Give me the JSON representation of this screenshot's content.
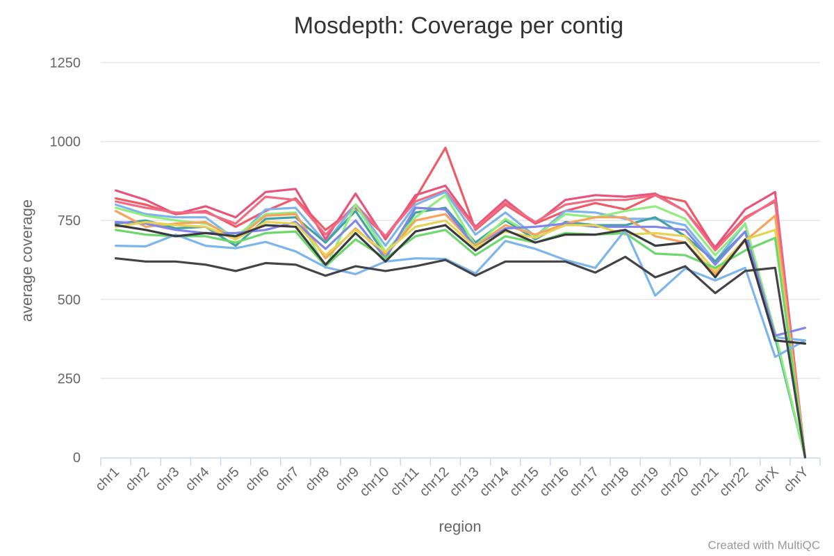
{
  "chart_data": {
    "type": "line",
    "title": "Mosdepth: Coverage per contig",
    "xlabel": "region",
    "ylabel": "average coverage",
    "credit": "Created with MultiQC",
    "ylim": [
      0,
      1250
    ],
    "yticks": [
      0,
      250,
      500,
      750,
      1000,
      1250
    ],
    "grid": true,
    "legend": "none",
    "categories": [
      "chr1",
      "chr2",
      "chr3",
      "chr4",
      "chr5",
      "chr6",
      "chr7",
      "chr8",
      "chr9",
      "chr10",
      "chr11",
      "chr12",
      "chr13",
      "chr14",
      "chr15",
      "chr16",
      "chr17",
      "chr18",
      "chr19",
      "chr20",
      "chr21",
      "chr22",
      "chrX",
      "chrY"
    ],
    "series": [
      {
        "color": "#ef5a67",
        "values": [
          820,
          800,
          770,
          780,
          730,
          780,
          820,
          720,
          790,
          700,
          820,
          980,
          720,
          800,
          740,
          780,
          805,
          785,
          830,
          810,
          660,
          760,
          810,
          0
        ]
      },
      {
        "color": "#e8537a",
        "values": [
          845,
          815,
          770,
          795,
          760,
          840,
          850,
          690,
          835,
          690,
          830,
          860,
          730,
          815,
          740,
          815,
          830,
          825,
          835,
          780,
          665,
          785,
          840,
          0
        ]
      },
      {
        "color": "#f06c85",
        "values": [
          810,
          790,
          775,
          775,
          740,
          825,
          815,
          705,
          800,
          700,
          810,
          845,
          725,
          805,
          745,
          800,
          815,
          815,
          830,
          780,
          655,
          755,
          815,
          0
        ]
      },
      {
        "color": "#7cb5ec",
        "values": [
          800,
          770,
          760,
          760,
          690,
          785,
          790,
          680,
          800,
          670,
          800,
          840,
          705,
          775,
          700,
          780,
          775,
          755,
          755,
          735,
          620,
          740,
          380,
          370
        ]
      },
      {
        "color": "#43a2a0",
        "values": [
          740,
          750,
          725,
          730,
          670,
          755,
          760,
          680,
          780,
          640,
          775,
          790,
          680,
          750,
          690,
          745,
          735,
          735,
          760,
          700,
          620,
          715,
          380,
          0
        ]
      },
      {
        "color": "#90ed7d",
        "values": [
          790,
          765,
          750,
          740,
          700,
          770,
          775,
          600,
          800,
          650,
          760,
          830,
          670,
          755,
          700,
          770,
          760,
          780,
          795,
          755,
          640,
          740,
          395,
          0
        ]
      },
      {
        "color": "#f7a35c",
        "values": [
          780,
          730,
          740,
          745,
          690,
          765,
          770,
          630,
          725,
          640,
          750,
          770,
          670,
          735,
          705,
          740,
          760,
          760,
          700,
          680,
          580,
          685,
          765,
          0
        ]
      },
      {
        "color": "#8085e9",
        "values": [
          745,
          740,
          720,
          710,
          710,
          720,
          745,
          660,
          750,
          630,
          790,
          785,
          665,
          725,
          730,
          740,
          730,
          730,
          730,
          720,
          610,
          715,
          385,
          410
        ]
      },
      {
        "color": "#e4d354",
        "values": [
          730,
          745,
          735,
          730,
          690,
          745,
          740,
          640,
          720,
          650,
          730,
          750,
          665,
          715,
          695,
          735,
          735,
          705,
          710,
          700,
          590,
          690,
          720,
          0
        ]
      },
      {
        "color": "#6cd86c",
        "values": [
          720,
          705,
          700,
          700,
          680,
          710,
          715,
          605,
          690,
          630,
          700,
          720,
          640,
          700,
          680,
          710,
          705,
          710,
          645,
          640,
          600,
          655,
          695,
          0
        ]
      },
      {
        "color": "#7cb5ec",
        "values": [
          670,
          668,
          705,
          670,
          662,
          682,
          652,
          602,
          580,
          620,
          630,
          628,
          582,
          685,
          660,
          625,
          600,
          720,
          512,
          598,
          560,
          600,
          318,
          370
        ]
      },
      {
        "color": "#434348",
        "values": [
          630,
          620,
          620,
          610,
          590,
          615,
          610,
          575,
          605,
          590,
          605,
          625,
          575,
          620,
          620,
          620,
          585,
          635,
          570,
          605,
          520,
          590,
          600,
          0
        ]
      },
      {
        "color": "#3a3a3e",
        "values": [
          735,
          720,
          700,
          710,
          700,
          735,
          730,
          610,
          710,
          620,
          715,
          735,
          655,
          720,
          680,
          705,
          705,
          720,
          670,
          680,
          570,
          690,
          370,
          360
        ]
      }
    ]
  }
}
